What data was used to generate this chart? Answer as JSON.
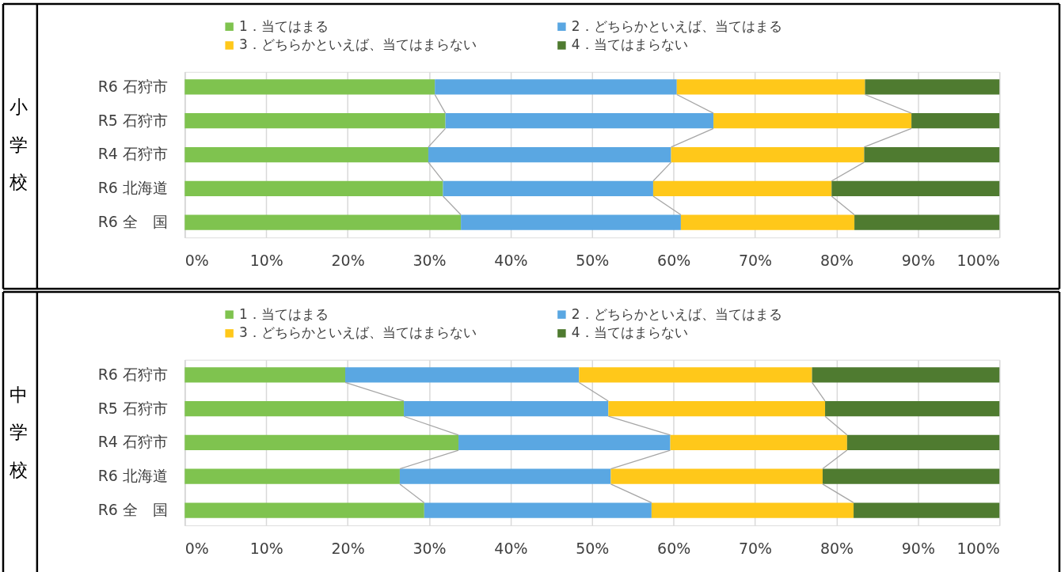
{
  "chart_data": [
    {
      "type": "bar",
      "orientation": "horizontal",
      "stacked": true,
      "title": "小学校",
      "categories": [
        "R6 石狩市",
        "R5 石狩市",
        "R4 石狩市",
        "R6 北海道",
        "R6 全　国"
      ],
      "series": [
        {
          "name": "1．当てはまる",
          "color": "#7fc34f",
          "values": [
            30.7,
            32.0,
            29.9,
            31.7,
            33.9
          ]
        },
        {
          "name": "2．どちらかといえば、当てはまる",
          "color": "#5aa7e2",
          "values": [
            29.7,
            32.9,
            29.8,
            25.8,
            27.0
          ]
        },
        {
          "name": "3．どちらかといえば、当てはまらない",
          "color": "#ffc81a",
          "values": [
            23.1,
            24.3,
            23.7,
            21.9,
            21.3
          ]
        },
        {
          "name": "4．当てはまらない",
          "color": "#4f7b30",
          "values": [
            16.5,
            10.8,
            16.6,
            20.6,
            17.8
          ]
        }
      ],
      "xlim": [
        0,
        100
      ],
      "xticks": [
        {
          "value": 0,
          "label": "0%"
        },
        {
          "value": 10,
          "label": "10%"
        },
        {
          "value": 20,
          "label": "20%"
        },
        {
          "value": 30,
          "label": "30%"
        },
        {
          "value": 40,
          "label": "40%"
        },
        {
          "value": 50,
          "label": "50%"
        },
        {
          "value": 60,
          "label": "60%"
        },
        {
          "value": 70,
          "label": "70%"
        },
        {
          "value": 80,
          "label": "80%"
        },
        {
          "value": 90,
          "label": "90%"
        },
        {
          "value": 100,
          "label": "100%"
        }
      ],
      "grid": "x",
      "legend": "top"
    },
    {
      "type": "bar",
      "orientation": "horizontal",
      "stacked": true,
      "title": "中学校",
      "categories": [
        "R6 石狩市",
        "R5 石狩市",
        "R4 石狩市",
        "R6 北海道",
        "R6 全　国"
      ],
      "series": [
        {
          "name": "1．当てはまる",
          "color": "#7fc34f",
          "values": [
            19.7,
            26.9,
            33.6,
            26.4,
            29.4
          ]
        },
        {
          "name": "2．どちらかといえば、当てはまる",
          "color": "#5aa7e2",
          "values": [
            28.7,
            25.1,
            26.0,
            25.9,
            27.9
          ]
        },
        {
          "name": "3．どちらかといえば、当てはまらない",
          "color": "#ffc81a",
          "values": [
            28.6,
            26.6,
            21.7,
            26.0,
            24.8
          ]
        },
        {
          "name": "4．当てはまらない",
          "color": "#4f7b30",
          "values": [
            23.0,
            21.4,
            18.7,
            21.7,
            17.9
          ]
        }
      ],
      "xlim": [
        0,
        100
      ],
      "xticks": [
        {
          "value": 0,
          "label": "0%"
        },
        {
          "value": 10,
          "label": "10%"
        },
        {
          "value": 20,
          "label": "20%"
        },
        {
          "value": 30,
          "label": "30%"
        },
        {
          "value": 40,
          "label": "40%"
        },
        {
          "value": 50,
          "label": "50%"
        },
        {
          "value": 60,
          "label": "60%"
        },
        {
          "value": 70,
          "label": "70%"
        },
        {
          "value": 80,
          "label": "80%"
        },
        {
          "value": 90,
          "label": "90%"
        },
        {
          "value": 100,
          "label": "100%"
        }
      ],
      "grid": "x",
      "legend": "top"
    }
  ]
}
